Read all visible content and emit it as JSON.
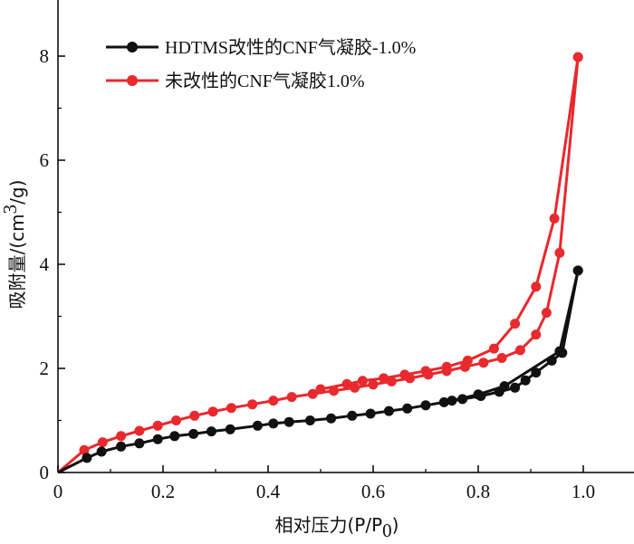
{
  "chart_data": {
    "type": "line",
    "title": "",
    "xlabel": "相对压力(P/P0)",
    "xlabel_parts": {
      "main": "相对压力(P/P",
      "sub": "0",
      "end": ")"
    },
    "ylabel": "吸附量/(cm3/g)",
    "ylabel_parts": {
      "main": "吸附量/(cm",
      "sup": "3",
      "end": "/g)"
    },
    "xlim": [
      0,
      1.1
    ],
    "ylim": [
      0,
      9
    ],
    "xticks": [
      "0",
      "0.2",
      "0.4",
      "0.6",
      "0.8",
      "1.0"
    ],
    "yticks": [
      "0",
      "2",
      "4",
      "6",
      "8"
    ],
    "xtick_values": [
      0,
      0.2,
      0.4,
      0.6,
      0.8,
      1.0
    ],
    "ytick_values": [
      0,
      2,
      4,
      6,
      8
    ],
    "grid": false,
    "legend_position": "top-left",
    "series": [
      {
        "name": "HDTMS改性的CNF气凝胶-1.0%",
        "color": "#111111",
        "adsorption": {
          "x": [
            0.0,
            0.055,
            0.083,
            0.12,
            0.155,
            0.19,
            0.222,
            0.258,
            0.292,
            0.328,
            0.38,
            0.41,
            0.44,
            0.48,
            0.52,
            0.56,
            0.595,
            0.63,
            0.665,
            0.7,
            0.735,
            0.77,
            0.805,
            0.84,
            0.87,
            0.89,
            0.91,
            0.94,
            0.96,
            0.99
          ],
          "y": [
            0.0,
            0.28,
            0.4,
            0.5,
            0.56,
            0.64,
            0.7,
            0.74,
            0.79,
            0.83,
            0.9,
            0.94,
            0.97,
            1.0,
            1.04,
            1.09,
            1.13,
            1.18,
            1.23,
            1.29,
            1.35,
            1.41,
            1.47,
            1.55,
            1.63,
            1.77,
            1.92,
            2.15,
            2.3,
            3.88
          ]
        },
        "desorption": {
          "x": [
            0.99,
            0.955,
            0.85,
            0.8,
            0.75
          ],
          "y": [
            3.88,
            2.33,
            1.66,
            1.5,
            1.38
          ]
        }
      },
      {
        "name": "未改性的CNF气凝胶1.0%",
        "color": "#e8292e",
        "adsorption": {
          "x": [
            0.0,
            0.05,
            0.085,
            0.12,
            0.155,
            0.19,
            0.225,
            0.26,
            0.295,
            0.33,
            0.37,
            0.41,
            0.445,
            0.485,
            0.525,
            0.565,
            0.6,
            0.635,
            0.67,
            0.705,
            0.74,
            0.775,
            0.81,
            0.845,
            0.88,
            0.91,
            0.93,
            0.955,
            0.99
          ],
          "y": [
            0.0,
            0.43,
            0.58,
            0.7,
            0.8,
            0.9,
            1.0,
            1.09,
            1.17,
            1.24,
            1.31,
            1.38,
            1.45,
            1.51,
            1.57,
            1.63,
            1.69,
            1.75,
            1.81,
            1.88,
            1.95,
            2.03,
            2.11,
            2.2,
            2.35,
            2.65,
            3.07,
            4.22,
            7.98
          ]
        },
        "desorption": {
          "x": [
            0.99,
            0.945,
            0.91,
            0.87,
            0.83,
            0.78,
            0.74,
            0.7,
            0.66,
            0.62,
            0.58,
            0.55,
            0.5
          ],
          "y": [
            7.98,
            4.88,
            3.57,
            2.86,
            2.38,
            2.15,
            2.03,
            1.95,
            1.88,
            1.81,
            1.76,
            1.7,
            1.6
          ]
        }
      }
    ]
  }
}
